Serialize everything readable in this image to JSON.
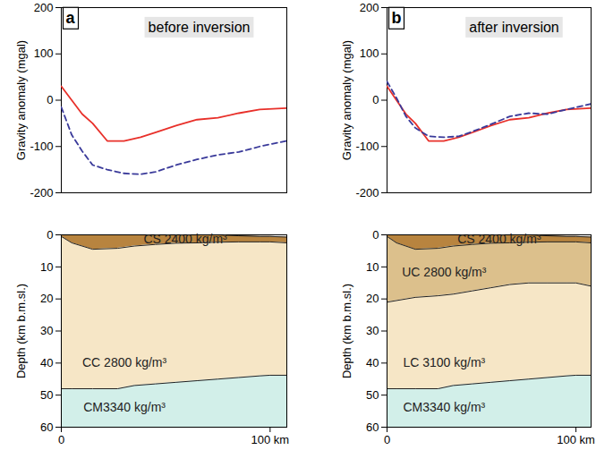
{
  "chart_data": [
    {
      "type": "line",
      "annotations": [
        {
          "text": "a"
        },
        {
          "text": "before inversion"
        }
      ],
      "ylabel": "Gravity anomaly (mgal)",
      "x": [
        0,
        5,
        10,
        15,
        22,
        30,
        38,
        45,
        55,
        65,
        75,
        85,
        95,
        108
      ],
      "series": [
        {
          "color": "#e8302a",
          "line_style": "solid",
          "values": [
            30,
            0,
            -30,
            -50,
            -88,
            -88,
            -80,
            -70,
            -55,
            -42,
            -38,
            -28,
            -20,
            -17
          ]
        },
        {
          "color": "#3a3a9a",
          "line_style": "dashed",
          "values": [
            -15,
            -75,
            -110,
            -140,
            -150,
            -158,
            -160,
            -155,
            -140,
            -128,
            -118,
            -112,
            -100,
            -88
          ]
        }
      ],
      "xlim": [
        0,
        108
      ],
      "ylim": [
        -200,
        200
      ],
      "yticks": [
        -200,
        -100,
        0,
        100,
        200
      ],
      "grid": false,
      "tick_labels": "y"
    },
    {
      "type": "line",
      "annotations": [
        {
          "text": "b"
        },
        {
          "text": "after inversion"
        }
      ],
      "ylabel": "Gravity anomaly (mgal)",
      "x": [
        0,
        5,
        10,
        15,
        22,
        30,
        38,
        45,
        55,
        65,
        75,
        85,
        95,
        108
      ],
      "series": [
        {
          "color": "#e8302a",
          "line_style": "solid",
          "values": [
            30,
            0,
            -30,
            -50,
            -88,
            -88,
            -80,
            -70,
            -55,
            -42,
            -38,
            -28,
            -20,
            -17
          ]
        },
        {
          "color": "#3a3a9a",
          "line_style": "dashed",
          "values": [
            40,
            5,
            -35,
            -60,
            -78,
            -80,
            -78,
            -68,
            -52,
            -35,
            -28,
            -30,
            -20,
            -8
          ]
        }
      ],
      "xlim": [
        0,
        108
      ],
      "ylim": [
        -200,
        200
      ],
      "yticks": [
        -200,
        -100,
        0,
        100,
        200
      ],
      "grid": false,
      "tick_labels": "y"
    },
    {
      "type": "area",
      "ylabel": "Depth (km b.m.sl.)",
      "x": [
        0,
        5,
        15,
        27,
        35,
        45,
        55,
        65,
        75,
        85,
        95,
        100,
        108
      ],
      "layers": [
        {
          "label": "CS 2400 kg/m³",
          "color": "#b8843f",
          "top": [
            0,
            0,
            0,
            0,
            0,
            0,
            0,
            0,
            0,
            0.3,
            0.5,
            0.5,
            0.7
          ],
          "bottom": [
            0.5,
            2.5,
            4.5,
            4.2,
            3.5,
            3,
            2.6,
            2.5,
            2.3,
            2.2,
            2.2,
            2.2,
            2.5
          ]
        },
        {
          "label": "CC 2800 kg/m³",
          "color": "#f6e6c6",
          "top": [
            0.5,
            2.5,
            4.5,
            4.2,
            3.5,
            3,
            2.6,
            2.5,
            2.3,
            2.2,
            2.2,
            2.2,
            2.5
          ],
          "bottom": [
            48,
            48,
            48,
            48,
            47,
            46.5,
            46,
            45.5,
            45,
            44.5,
            44,
            43.8,
            43.8
          ]
        },
        {
          "label": "CM3340 kg/m³",
          "color": "#d2efe9",
          "top": [
            48,
            48,
            48,
            48,
            47,
            46.5,
            46,
            45.5,
            45,
            44.5,
            44,
            43.8,
            43.8
          ],
          "bottom": [
            60,
            60,
            60,
            60,
            60,
            60,
            60,
            60,
            60,
            60,
            60,
            60,
            60
          ]
        }
      ],
      "xlim": [
        0,
        108
      ],
      "xticks": [
        0,
        {
          "value": 100,
          "label": "100 km"
        }
      ],
      "ylim": [
        60,
        0
      ],
      "yticks": [
        0,
        10,
        20,
        30,
        40,
        50,
        60
      ],
      "grid": false
    },
    {
      "type": "area",
      "ylabel": "Depth (km b.m.sl.)",
      "x": [
        0,
        5,
        15,
        27,
        35,
        45,
        55,
        65,
        75,
        85,
        95,
        100,
        108
      ],
      "layers": [
        {
          "label": "CS 2400 kg/m³",
          "color": "#b8843f",
          "top": [
            0,
            0,
            0,
            0,
            0,
            0,
            0,
            0,
            0,
            0.3,
            0.5,
            0.5,
            0.7
          ],
          "bottom": [
            0.5,
            2.5,
            4.5,
            4.2,
            3.5,
            3,
            2.6,
            2.5,
            2.3,
            2.2,
            2.2,
            2.2,
            2.5
          ]
        },
        {
          "label": "UC 2800 kg/m³",
          "color": "#dcc08c",
          "top": [
            0.5,
            2.5,
            4.5,
            4.2,
            3.5,
            3,
            2.6,
            2.5,
            2.3,
            2.2,
            2.2,
            2.2,
            2.5
          ],
          "bottom": [
            21,
            20.5,
            19.5,
            19,
            18.5,
            17.5,
            16.5,
            15.5,
            15,
            15,
            15,
            15,
            16
          ]
        },
        {
          "label": "LC 3100 kg/m³",
          "color": "#f6e6c6",
          "top": [
            21,
            20.5,
            19.5,
            19,
            18.5,
            17.5,
            16.5,
            15.5,
            15,
            15,
            15,
            15,
            16
          ],
          "bottom": [
            48,
            48,
            48,
            48,
            47,
            46.5,
            46,
            45.5,
            45,
            44.5,
            44,
            43.8,
            43.8
          ]
        },
        {
          "label": "CM3340 kg/m³",
          "color": "#d2efe9",
          "top": [
            48,
            48,
            48,
            48,
            47,
            46.5,
            46,
            45.5,
            45,
            44.5,
            44,
            43.8,
            43.8
          ],
          "bottom": [
            60,
            60,
            60,
            60,
            60,
            60,
            60,
            60,
            60,
            60,
            60,
            60,
            60
          ]
        }
      ],
      "xlim": [
        0,
        108
      ],
      "xticks": [
        0,
        {
          "value": 100,
          "label": "100 km"
        }
      ],
      "ylim": [
        60,
        0
      ],
      "yticks": [
        0,
        10,
        20,
        30,
        40,
        50,
        60
      ],
      "grid": false
    }
  ]
}
